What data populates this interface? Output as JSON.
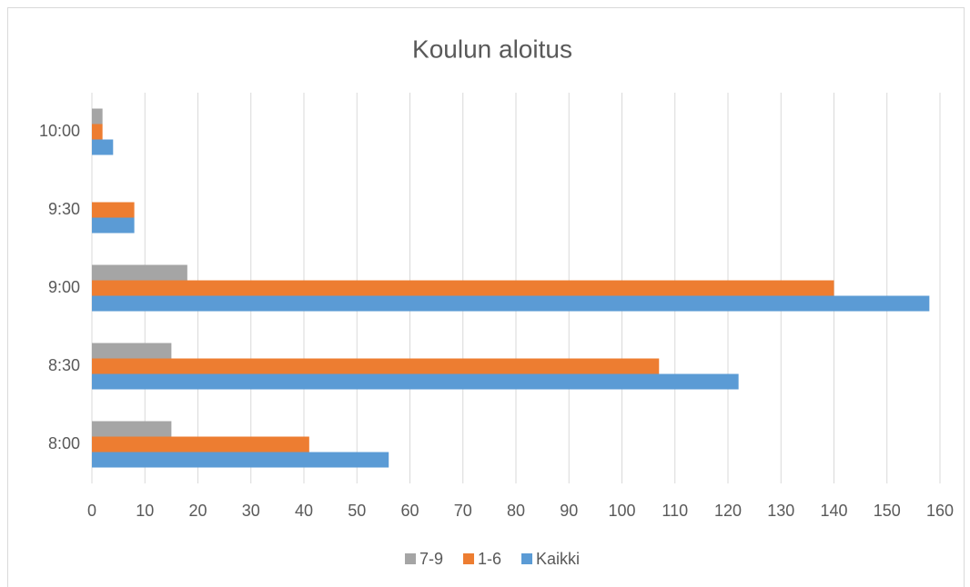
{
  "chart_data": {
    "type": "hbar",
    "title": "Koulun aloitus",
    "categories": [
      "8:00",
      "8:30",
      "9:00",
      "9:30",
      "10:00"
    ],
    "series": [
      {
        "name": "7-9",
        "color": "#a5a5a5",
        "values": [
          15,
          15,
          18,
          0,
          2
        ]
      },
      {
        "name": "1-6",
        "color": "#ed7d31",
        "values": [
          41,
          107,
          140,
          8,
          2
        ]
      },
      {
        "name": "Kaikki",
        "color": "#5b9bd5",
        "values": [
          56,
          122,
          158,
          8,
          4
        ]
      }
    ],
    "xlim": [
      0,
      160
    ],
    "xticks": [
      0,
      10,
      20,
      30,
      40,
      50,
      60,
      70,
      80,
      90,
      100,
      110,
      120,
      130,
      140,
      150,
      160
    ],
    "grid": true,
    "legend": "bottom"
  }
}
